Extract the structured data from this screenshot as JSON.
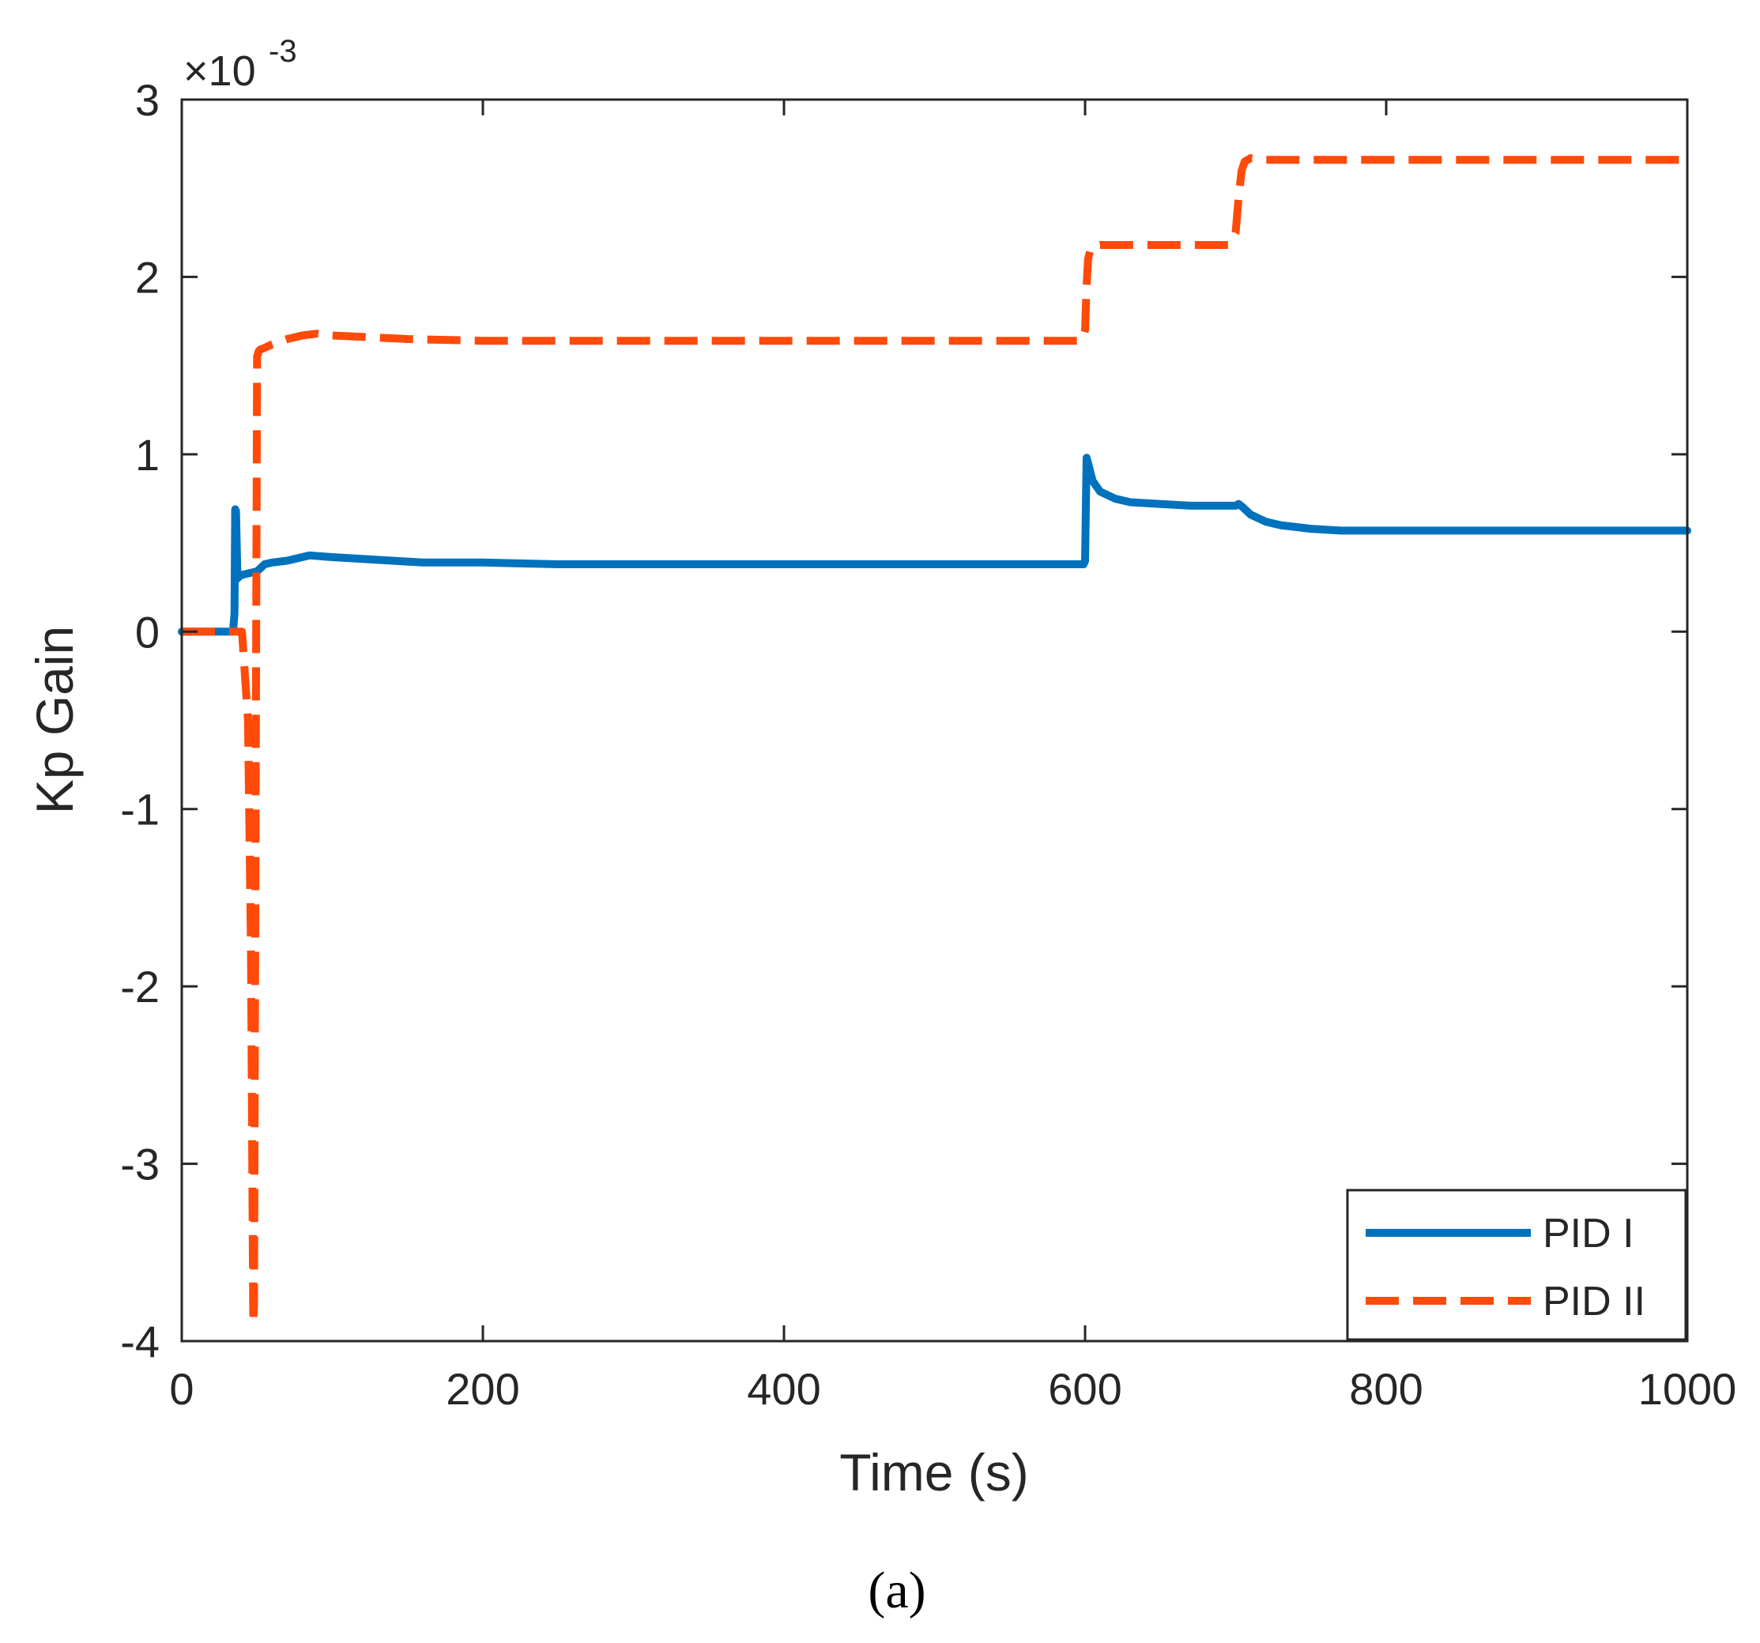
{
  "chart_data": {
    "type": "line",
    "xlabel": "Time (s)",
    "ylabel": "Kp Gain",
    "y_multiplier": {
      "prefix": "×10",
      "exponent": "-3"
    },
    "xlim": [
      0,
      1000
    ],
    "ylim": [
      -4,
      3
    ],
    "xticks": [
      0,
      200,
      400,
      600,
      800,
      1000
    ],
    "xtick_labels": [
      "0",
      "200",
      "400",
      "600",
      "800",
      "1000"
    ],
    "yticks": [
      -4,
      -3,
      -2,
      -1,
      0,
      1,
      2,
      3
    ],
    "ytick_labels": [
      "-4",
      "-3",
      "-2",
      "-1",
      "0",
      "1",
      "2",
      "3"
    ],
    "grid": false,
    "legend_position": "bottom-right",
    "caption": "(a)",
    "series": [
      {
        "name": "PID I",
        "color": "#0072BD",
        "style": "solid",
        "x": [
          0,
          34,
          35,
          35.5,
          36,
          37,
          38,
          40,
          45,
          50,
          55,
          60,
          70,
          80,
          85,
          100,
          120,
          140,
          160,
          180,
          200,
          250,
          300,
          400,
          500,
          599,
          600,
          601,
          602,
          605,
          610,
          620,
          630,
          650,
          670,
          690,
          700,
          702,
          705,
          710,
          720,
          730,
          750,
          770,
          800,
          900,
          1000
        ],
        "y": [
          0,
          0,
          0.1,
          0.69,
          0.68,
          0.3,
          0.31,
          0.32,
          0.33,
          0.34,
          0.38,
          0.39,
          0.4,
          0.42,
          0.43,
          0.42,
          0.41,
          0.4,
          0.39,
          0.39,
          0.39,
          0.38,
          0.38,
          0.38,
          0.38,
          0.38,
          0.4,
          0.98,
          0.95,
          0.85,
          0.79,
          0.75,
          0.73,
          0.72,
          0.71,
          0.71,
          0.71,
          0.72,
          0.7,
          0.66,
          0.62,
          0.6,
          0.58,
          0.57,
          0.57,
          0.57,
          0.57
        ]
      },
      {
        "name": "PID II",
        "color": "#FF4A0A",
        "style": "dashed",
        "x": [
          0,
          35,
          40,
          44,
          46,
          47,
          47.5,
          48,
          49,
          50,
          51,
          52,
          55,
          60,
          70,
          80,
          90,
          100,
          150,
          200,
          300,
          400,
          500,
          598,
          600,
          601,
          602,
          604,
          610,
          650,
          695,
          700,
          702,
          704,
          706,
          710,
          720,
          800,
          1000
        ],
        "y": [
          0,
          0,
          0,
          -0.5,
          -1.8,
          -3.2,
          -3.9,
          -3.8,
          -1.2,
          1.55,
          1.58,
          1.59,
          1.6,
          1.62,
          1.65,
          1.67,
          1.68,
          1.67,
          1.65,
          1.64,
          1.64,
          1.64,
          1.64,
          1.64,
          1.7,
          1.95,
          2.1,
          2.17,
          2.18,
          2.18,
          2.18,
          2.25,
          2.45,
          2.6,
          2.65,
          2.67,
          2.66,
          2.66,
          2.66
        ]
      }
    ]
  }
}
